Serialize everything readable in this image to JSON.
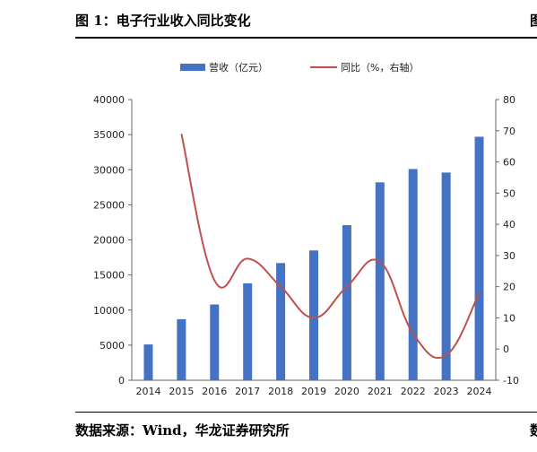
{
  "figure": {
    "title": "图 1：电子行业收入同比变化",
    "edge_char_top": "图",
    "source": "数据来源：Wind，华龙证券研究所",
    "edge_char_bottom": "数"
  },
  "chart_data": {
    "type": "bar",
    "categories": [
      "2014",
      "2015",
      "2016",
      "2017",
      "2018",
      "2019",
      "2020",
      "2021",
      "2022",
      "2023",
      "2024"
    ],
    "series": [
      {
        "name": "营收（亿元）",
        "type": "bar",
        "axis": "left",
        "color": "#4472C4",
        "values": [
          5100,
          8700,
          10800,
          13800,
          16700,
          18500,
          22100,
          28200,
          30100,
          29600,
          34700
        ]
      },
      {
        "name": "同比（%，右轴）",
        "type": "line",
        "axis": "right",
        "color": "#C0504D",
        "values": [
          null,
          69,
          22,
          29,
          20,
          10,
          20,
          28,
          5,
          -2,
          18
        ]
      }
    ],
    "left_axis": {
      "ylim": [
        0,
        40000
      ],
      "ticks": [
        "0",
        "5000",
        "10000",
        "15000",
        "20000",
        "25000",
        "30000",
        "35000",
        "40000"
      ]
    },
    "right_axis": {
      "ylim": [
        -10,
        80
      ],
      "ticks": [
        "-10",
        "0",
        "10",
        "20",
        "30",
        "40",
        "50",
        "60",
        "70",
        "80"
      ]
    },
    "legend_position": "top",
    "grid": false
  }
}
